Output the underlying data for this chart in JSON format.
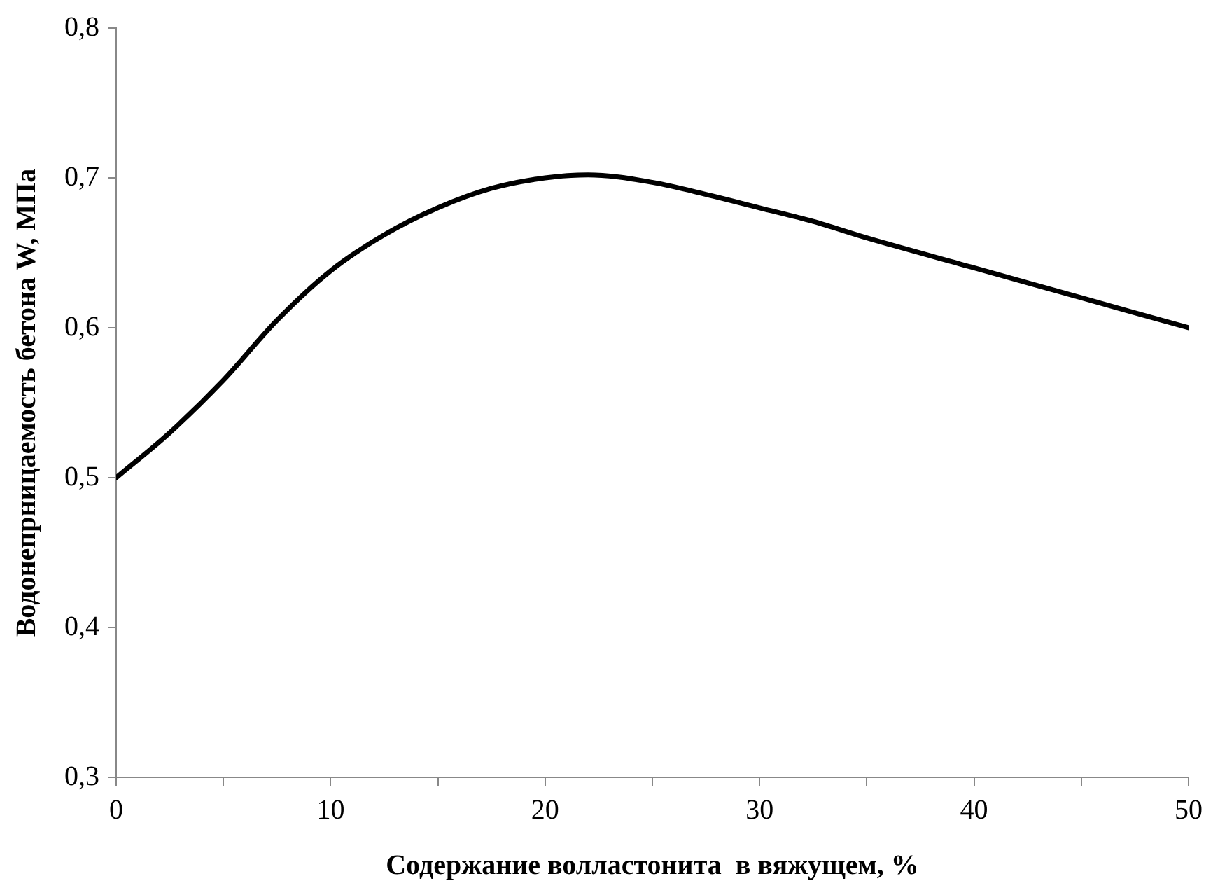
{
  "chart_data": {
    "type": "line",
    "xlabel": "Содержание волластонита  в вяжущем, %",
    "ylabel": "Водонепрницаемость бетона W, МПа",
    "x": [
      0,
      2.5,
      5,
      7.5,
      10,
      12.5,
      15,
      17.5,
      20,
      22,
      25,
      27.5,
      30,
      32.5,
      35,
      40,
      45,
      50
    ],
    "series": [
      {
        "color": "#000000",
        "values": [
          0.5,
          0.53,
          0.565,
          0.605,
          0.638,
          0.662,
          0.68,
          0.693,
          0.7,
          0.702,
          0.697,
          0.689,
          0.68,
          0.671,
          0.66,
          0.64,
          0.62,
          0.6
        ]
      }
    ],
    "xlim": [
      0,
      50
    ],
    "xticks": [
      0,
      {
        "value": 5,
        "label": null
      },
      10,
      {
        "value": 15,
        "label": null
      },
      20,
      {
        "value": 25,
        "label": null
      },
      30,
      {
        "value": 35,
        "label": null
      },
      40,
      {
        "value": 45,
        "label": null
      },
      50
    ],
    "ylim": [
      0.3,
      0.8
    ],
    "yticks": [
      {
        "value": 0.3,
        "label": "0,3"
      },
      {
        "value": 0.4,
        "label": "0,4"
      },
      {
        "value": 0.5,
        "label": "0,5"
      },
      {
        "value": 0.6,
        "label": "0,6"
      },
      {
        "value": 0.7,
        "label": "0,7"
      },
      {
        "value": 0.8,
        "label": "0,8"
      }
    ],
    "grid": false,
    "legend": false,
    "marker": "none",
    "line_style": "solid"
  }
}
